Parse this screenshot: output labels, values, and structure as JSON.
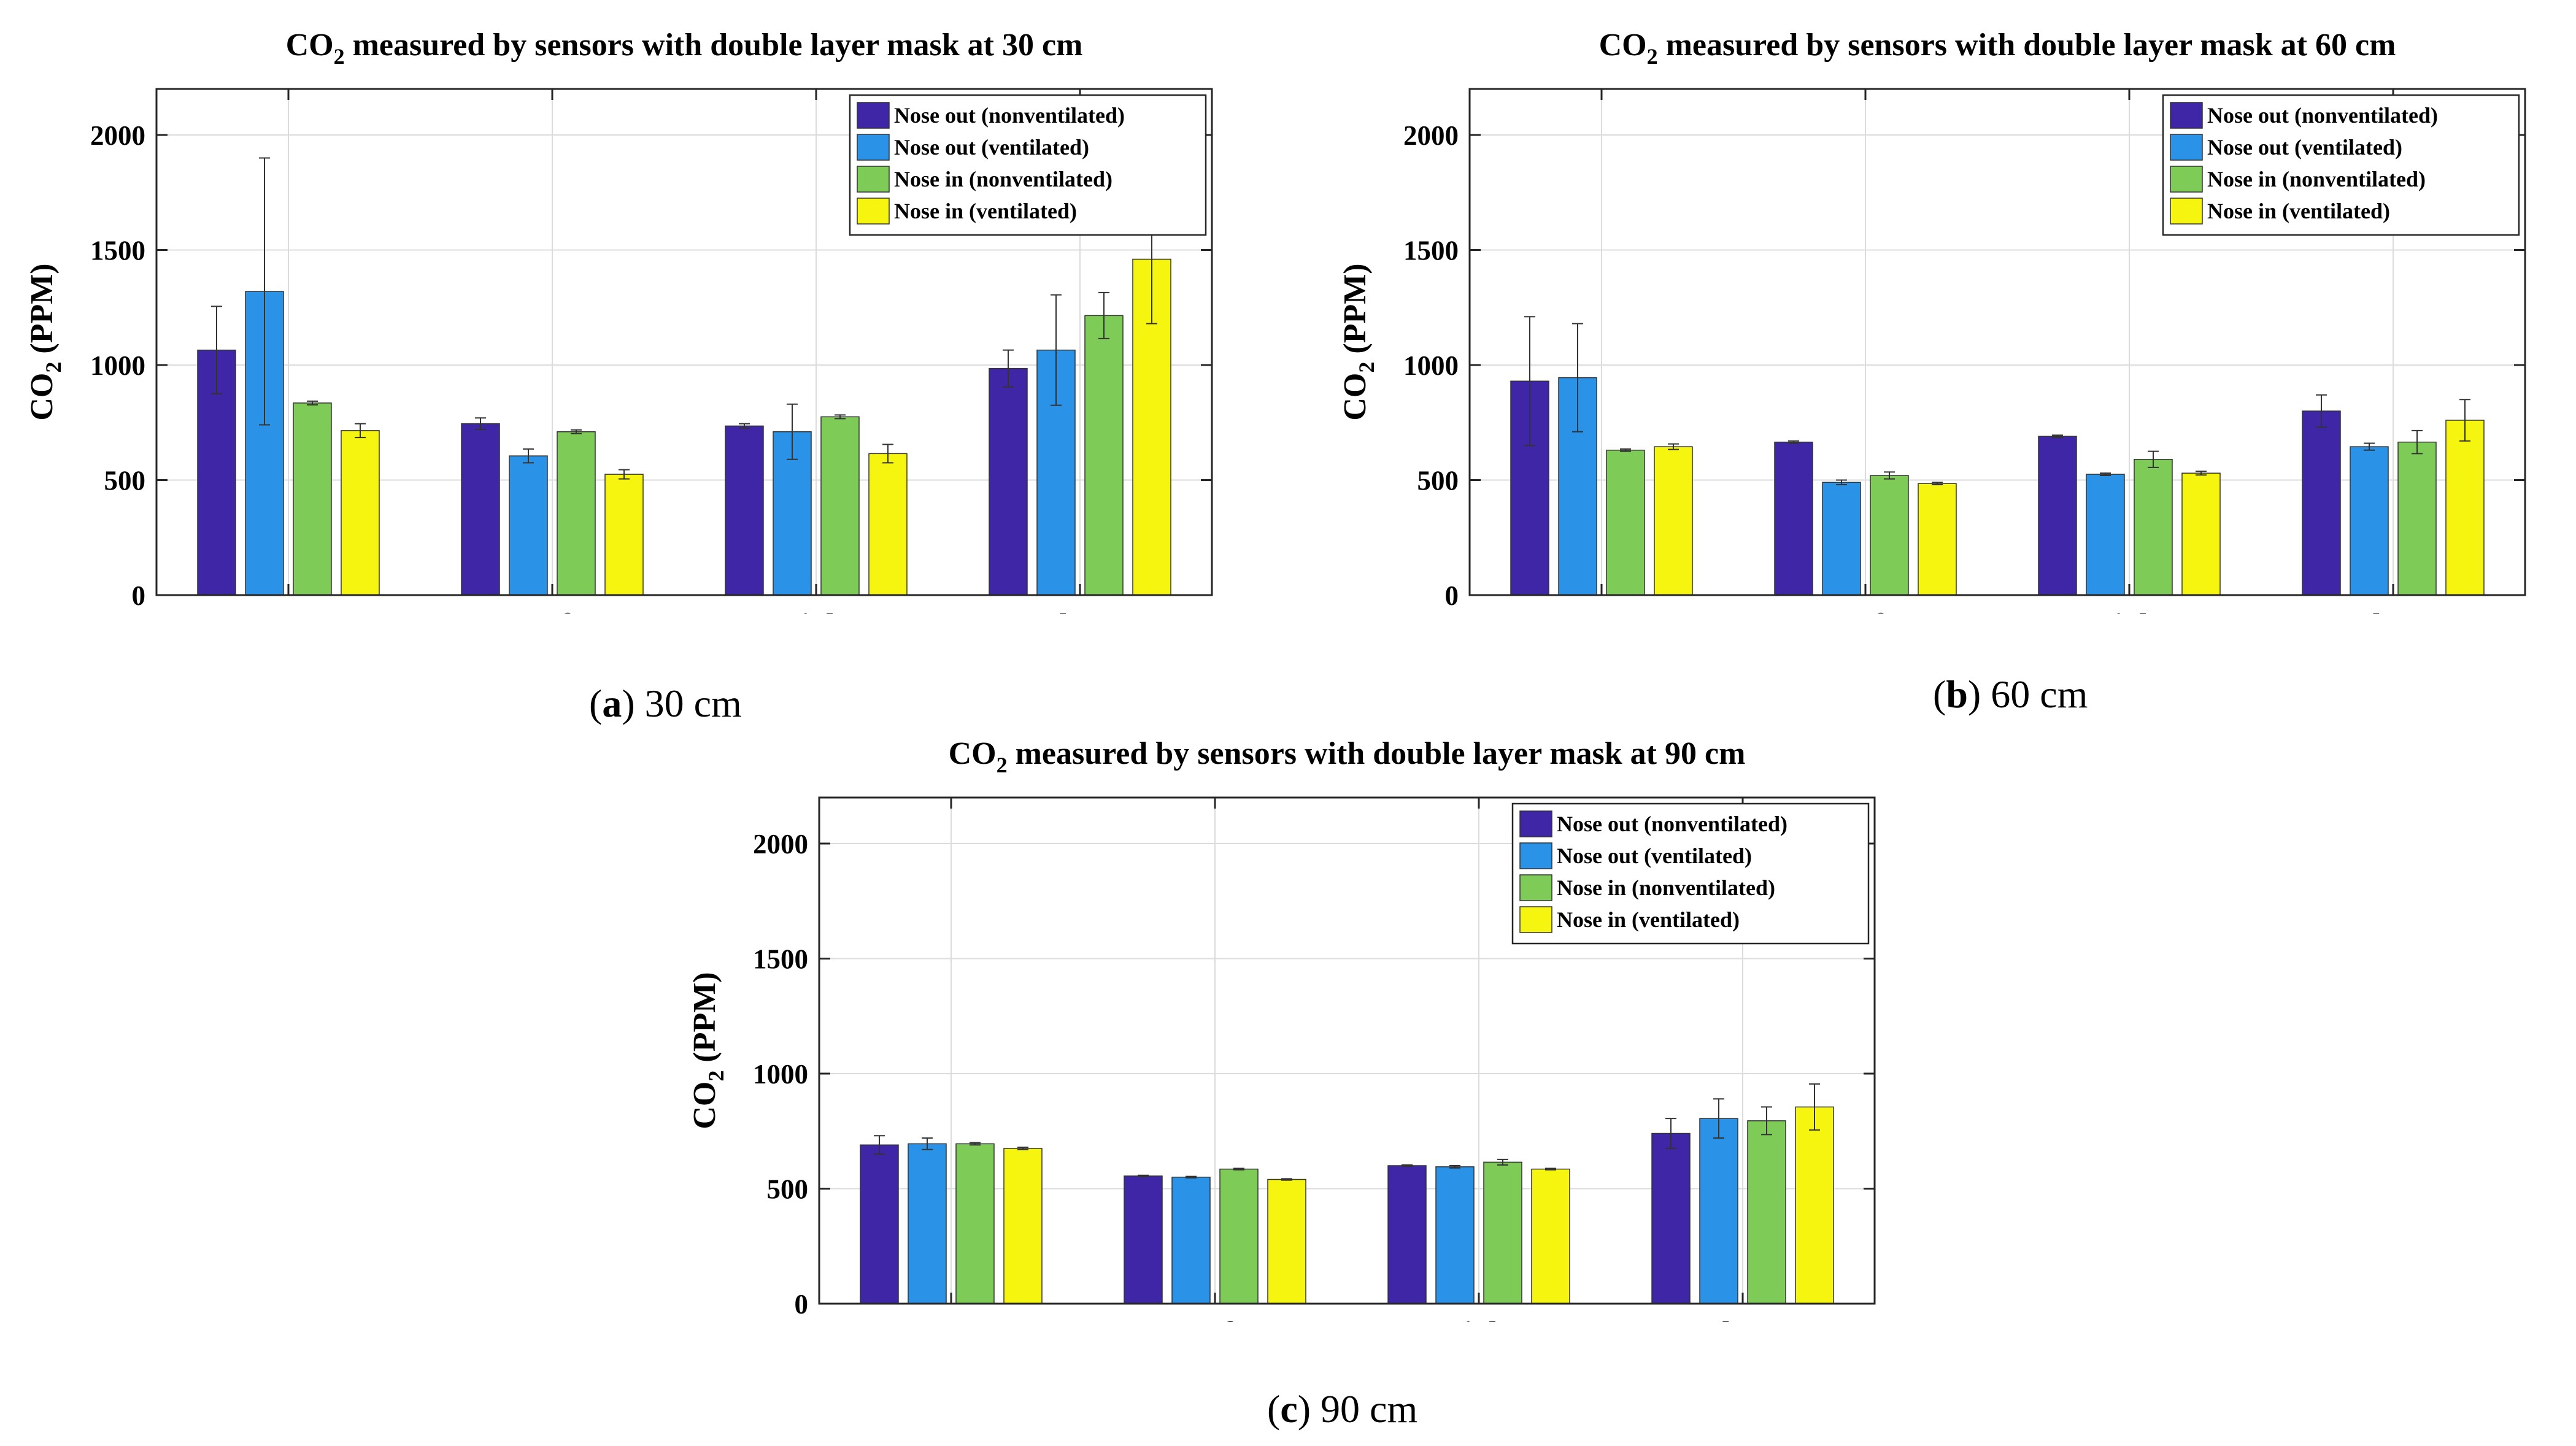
{
  "chart_data": [
    {
      "type": "bar",
      "panel_label": "a",
      "caption": "30 cm",
      "title_prefix": "CO",
      "title_sub": "2",
      "title_suffix": " measured by sensors with double layer mask at 30 cm",
      "ylabel_prefix": "CO",
      "ylabel_sub": "2",
      "ylabel_suffix": " (PPM)",
      "xlabel": "",
      "ylim": [
        0,
        2200
      ],
      "yticks": [
        0,
        500,
        1000,
        1500,
        2000
      ],
      "grid": true,
      "legend_position": "top-right",
      "categories": [
        "Front",
        "Left",
        "Right",
        "Above"
      ],
      "series": [
        {
          "name": "Nose out (nonventilated)",
          "color": "#3F26A6",
          "values": [
            1065,
            745,
            735,
            985
          ],
          "errors": [
            190,
            25,
            10,
            80
          ]
        },
        {
          "name": "Nose out (ventilated)",
          "color": "#2A93E8",
          "values": [
            1320,
            605,
            710,
            1065
          ],
          "errors": [
            580,
            30,
            120,
            240
          ]
        },
        {
          "name": "Nose in (nonventilated)",
          "color": "#7FCB58",
          "values": [
            835,
            710,
            775,
            1215
          ],
          "errors": [
            8,
            8,
            8,
            100
          ]
        },
        {
          "name": "Nose in (ventilated)",
          "color": "#F5F50F",
          "values": [
            715,
            525,
            615,
            1460
          ],
          "errors": [
            30,
            20,
            40,
            280
          ]
        }
      ]
    },
    {
      "type": "bar",
      "panel_label": "b",
      "caption": "60 cm",
      "title_prefix": "CO",
      "title_sub": "2",
      "title_suffix": " measured by sensors with double layer mask at 60 cm",
      "ylabel_prefix": "CO",
      "ylabel_sub": "2",
      "ylabel_suffix": " (PPM)",
      "xlabel": "",
      "ylim": [
        0,
        2200
      ],
      "yticks": [
        0,
        500,
        1000,
        1500,
        2000
      ],
      "grid": true,
      "legend_position": "top-right",
      "categories": [
        "Front",
        "Left",
        "Right",
        "Above"
      ],
      "series": [
        {
          "name": "Nose out (nonventilated)",
          "color": "#3F26A6",
          "values": [
            930,
            665,
            690,
            800
          ],
          "errors": [
            280,
            5,
            5,
            70
          ]
        },
        {
          "name": "Nose out (ventilated)",
          "color": "#2A93E8",
          "values": [
            945,
            490,
            525,
            645
          ],
          "errors": [
            235,
            10,
            5,
            15
          ]
        },
        {
          "name": "Nose in (nonventilated)",
          "color": "#7FCB58",
          "values": [
            630,
            520,
            590,
            665
          ],
          "errors": [
            5,
            15,
            35,
            50
          ]
        },
        {
          "name": "Nose in (ventilated)",
          "color": "#F5F50F",
          "values": [
            645,
            485,
            530,
            760
          ],
          "errors": [
            12,
            5,
            8,
            90
          ]
        }
      ]
    },
    {
      "type": "bar",
      "panel_label": "c",
      "caption": "90 cm",
      "title_prefix": "CO",
      "title_sub": "2",
      "title_suffix": " measured by sensors with double layer mask at 90 cm",
      "ylabel_prefix": "CO",
      "ylabel_sub": "2",
      "ylabel_suffix": " (PPM)",
      "xlabel": "",
      "ylim": [
        0,
        2200
      ],
      "yticks": [
        0,
        500,
        1000,
        1500,
        2000
      ],
      "grid": true,
      "legend_position": "top-right",
      "categories": [
        "Front",
        "Left",
        "Right",
        "Above"
      ],
      "series": [
        {
          "name": "Nose out (nonventilated)",
          "color": "#3F26A6",
          "values": [
            690,
            555,
            600,
            740
          ],
          "errors": [
            40,
            3,
            3,
            65
          ]
        },
        {
          "name": "Nose out (ventilated)",
          "color": "#2A93E8",
          "values": [
            695,
            550,
            595,
            805
          ],
          "errors": [
            25,
            3,
            5,
            85
          ]
        },
        {
          "name": "Nose in (nonventilated)",
          "color": "#7FCB58",
          "values": [
            695,
            585,
            615,
            795
          ],
          "errors": [
            5,
            3,
            12,
            60
          ]
        },
        {
          "name": "Nose in (ventilated)",
          "color": "#F5F50F",
          "values": [
            675,
            540,
            585,
            855
          ],
          "errors": [
            5,
            3,
            3,
            100
          ]
        }
      ]
    }
  ]
}
